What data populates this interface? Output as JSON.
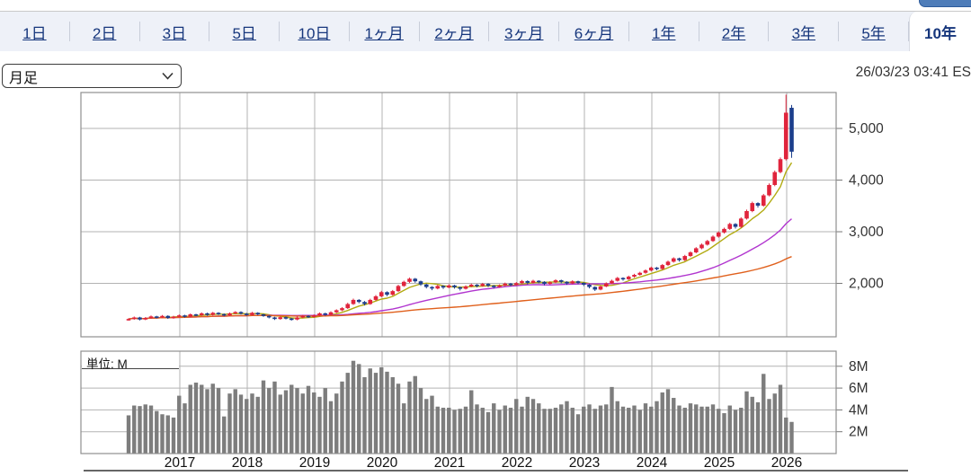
{
  "toolbar": {
    "tabs": [
      {
        "label": "1日"
      },
      {
        "label": "2日"
      },
      {
        "label": "3日"
      },
      {
        "label": "5日"
      },
      {
        "label": "10日"
      },
      {
        "label": "1ヶ月"
      },
      {
        "label": "2ヶ月"
      },
      {
        "label": "3ヶ月"
      },
      {
        "label": "6ヶ月"
      },
      {
        "label": "1年"
      },
      {
        "label": "2年"
      },
      {
        "label": "3年"
      },
      {
        "label": "5年"
      },
      {
        "label": "10年"
      }
    ],
    "selected_tab": "10年"
  },
  "controls": {
    "timeframe_select": {
      "value": "月足"
    },
    "timestamp": "26/03/23 03:41 ES"
  },
  "chart_data": {
    "type": "candlestick",
    "title": "",
    "x_axis": {
      "year_labels": [
        "2017",
        "2018",
        "2019",
        "2020",
        "2021",
        "2022",
        "2023",
        "2024",
        "2025",
        "2026"
      ]
    },
    "price_axis": {
      "tick_values": [
        5000,
        4000,
        3000,
        2000
      ],
      "tick_labels": [
        "5,000",
        "4,000",
        "3,000",
        "2,000"
      ]
    },
    "volume_axis": {
      "tick_values": [
        8,
        6,
        4,
        2
      ],
      "tick_labels": [
        "8M",
        "6M",
        "4M",
        "2M"
      ],
      "unit_label": "単位: M"
    },
    "start_month": "2016-03",
    "candles": [
      [
        1300,
        1325,
        1278,
        1310
      ],
      [
        1310,
        1358,
        1295,
        1340
      ],
      [
        1340,
        1352,
        1282,
        1300
      ],
      [
        1300,
        1348,
        1288,
        1330
      ],
      [
        1330,
        1378,
        1315,
        1360
      ],
      [
        1360,
        1372,
        1322,
        1340
      ],
      [
        1340,
        1388,
        1326,
        1370
      ],
      [
        1370,
        1382,
        1312,
        1330
      ],
      [
        1330,
        1372,
        1315,
        1355
      ],
      [
        1355,
        1398,
        1340,
        1380
      ],
      [
        1380,
        1392,
        1338,
        1355
      ],
      [
        1355,
        1418,
        1342,
        1400
      ],
      [
        1400,
        1412,
        1365,
        1385
      ],
      [
        1385,
        1438,
        1370,
        1420
      ],
      [
        1420,
        1432,
        1372,
        1390
      ],
      [
        1390,
        1448,
        1376,
        1430
      ],
      [
        1430,
        1442,
        1388,
        1405
      ],
      [
        1405,
        1418,
        1362,
        1380
      ],
      [
        1380,
        1438,
        1366,
        1420
      ],
      [
        1420,
        1462,
        1406,
        1445
      ],
      [
        1445,
        1458,
        1398,
        1415
      ],
      [
        1415,
        1428,
        1372,
        1390
      ],
      [
        1390,
        1448,
        1376,
        1430
      ],
      [
        1430,
        1442,
        1382,
        1400
      ],
      [
        1400,
        1412,
        1352,
        1370
      ],
      [
        1370,
        1382,
        1322,
        1340
      ],
      [
        1340,
        1352,
        1292,
        1310
      ],
      [
        1310,
        1362,
        1296,
        1345
      ],
      [
        1345,
        1358,
        1302,
        1320
      ],
      [
        1320,
        1332,
        1280,
        1300
      ],
      [
        1300,
        1358,
        1286,
        1340
      ],
      [
        1340,
        1388,
        1326,
        1370
      ],
      [
        1370,
        1382,
        1330,
        1350
      ],
      [
        1350,
        1398,
        1336,
        1380
      ],
      [
        1380,
        1438,
        1366,
        1420
      ],
      [
        1420,
        1432,
        1372,
        1390
      ],
      [
        1390,
        1458,
        1376,
        1440
      ],
      [
        1440,
        1498,
        1425,
        1480
      ],
      [
        1480,
        1540,
        1462,
        1520
      ],
      [
        1520,
        1625,
        1505,
        1600
      ],
      [
        1600,
        1705,
        1582,
        1680
      ],
      [
        1680,
        1695,
        1615,
        1640
      ],
      [
        1640,
        1658,
        1572,
        1600
      ],
      [
        1600,
        1702,
        1585,
        1680
      ],
      [
        1680,
        1775,
        1662,
        1750
      ],
      [
        1750,
        1855,
        1732,
        1830
      ],
      [
        1830,
        1845,
        1752,
        1780
      ],
      [
        1780,
        1872,
        1762,
        1850
      ],
      [
        1850,
        1975,
        1832,
        1950
      ],
      [
        1950,
        2052,
        1932,
        2030
      ],
      [
        2030,
        2112,
        2008,
        2090
      ],
      [
        2090,
        2105,
        2012,
        2040
      ],
      [
        2040,
        2055,
        1952,
        1980
      ],
      [
        1980,
        1995,
        1902,
        1930
      ],
      [
        1930,
        1945,
        1868,
        1900
      ],
      [
        1900,
        1972,
        1885,
        1950
      ],
      [
        1950,
        1965,
        1892,
        1920
      ],
      [
        1920,
        1982,
        1905,
        1960
      ],
      [
        1960,
        1972,
        1898,
        1925
      ],
      [
        1925,
        1938,
        1862,
        1895
      ],
      [
        1895,
        1962,
        1880,
        1940
      ],
      [
        1940,
        1995,
        1925,
        1975
      ],
      [
        1975,
        1988,
        1922,
        1950
      ],
      [
        1950,
        2010,
        1935,
        1990
      ],
      [
        1990,
        2002,
        1928,
        1955
      ],
      [
        1955,
        1968,
        1902,
        1930
      ],
      [
        1930,
        1980,
        1915,
        1960
      ],
      [
        1960,
        2015,
        1945,
        1995
      ],
      [
        1995,
        2008,
        1942,
        1970
      ],
      [
        1970,
        2025,
        1955,
        2005
      ],
      [
        2005,
        2065,
        1990,
        2045
      ],
      [
        2045,
        2058,
        1982,
        2010
      ],
      [
        2010,
        2070,
        1995,
        2050
      ],
      [
        2050,
        2062,
        2002,
        2030
      ],
      [
        2030,
        2042,
        1962,
        1990
      ],
      [
        1990,
        2040,
        1975,
        2020
      ],
      [
        2020,
        2080,
        2005,
        2060
      ],
      [
        2060,
        2072,
        2002,
        2030
      ],
      [
        2030,
        2042,
        1972,
        2000
      ],
      [
        2000,
        2060,
        1985,
        2040
      ],
      [
        2040,
        2052,
        1982,
        2010
      ],
      [
        2010,
        2022,
        1948,
        1975
      ],
      [
        1975,
        1988,
        1902,
        1930
      ],
      [
        1930,
        1942,
        1852,
        1880
      ],
      [
        1880,
        1960,
        1865,
        1940
      ],
      [
        1940,
        2020,
        1925,
        2000
      ],
      [
        2000,
        2072,
        1985,
        2050
      ],
      [
        2050,
        2125,
        2035,
        2105
      ],
      [
        2105,
        2118,
        2052,
        2080
      ],
      [
        2080,
        2150,
        2065,
        2130
      ],
      [
        2130,
        2185,
        2112,
        2165
      ],
      [
        2165,
        2225,
        2148,
        2205
      ],
      [
        2205,
        2272,
        2188,
        2250
      ],
      [
        2250,
        2325,
        2232,
        2305
      ],
      [
        2305,
        2318,
        2252,
        2280
      ],
      [
        2280,
        2375,
        2262,
        2355
      ],
      [
        2355,
        2442,
        2338,
        2420
      ],
      [
        2420,
        2505,
        2402,
        2485
      ],
      [
        2485,
        2498,
        2422,
        2450
      ],
      [
        2450,
        2552,
        2432,
        2530
      ],
      [
        2530,
        2622,
        2512,
        2600
      ],
      [
        2600,
        2702,
        2582,
        2680
      ],
      [
        2680,
        2772,
        2662,
        2750
      ],
      [
        2750,
        2842,
        2732,
        2820
      ],
      [
        2820,
        2928,
        2802,
        2905
      ],
      [
        2905,
        3008,
        2885,
        2985
      ],
      [
        2985,
        3078,
        2965,
        3055
      ],
      [
        3055,
        3175,
        3035,
        3150
      ],
      [
        3150,
        3165,
        3062,
        3095
      ],
      [
        3095,
        3280,
        3075,
        3255
      ],
      [
        3255,
        3428,
        3235,
        3400
      ],
      [
        3400,
        3582,
        3378,
        3555
      ],
      [
        3555,
        3570,
        3468,
        3505
      ],
      [
        3505,
        3732,
        3485,
        3705
      ],
      [
        3705,
        3935,
        3685,
        3905
      ],
      [
        3905,
        4185,
        3882,
        4155
      ],
      [
        4155,
        4438,
        4130,
        4405
      ],
      [
        4405,
        5655,
        4380,
        5305
      ],
      [
        5400,
        5455,
        4430,
        4550
      ]
    ],
    "volumes": [
      3.5,
      4.4,
      4.35,
      4.5,
      4.4,
      3.9,
      3.6,
      3.5,
      3.3,
      5.3,
      4.6,
      6.3,
      6.5,
      6.3,
      5.9,
      6.4,
      6.0,
      3.4,
      5.5,
      5.9,
      5.4,
      5.0,
      5.5,
      5.2,
      6.7,
      6.0,
      6.6,
      5.4,
      5.8,
      6.3,
      6.0,
      5.5,
      6.2,
      5.6,
      5.2,
      6.0,
      4.8,
      5.5,
      6.6,
      7.4,
      8.5,
      8.2,
      7.0,
      7.8,
      7.4,
      7.9,
      7.5,
      7.0,
      6.4,
      4.6,
      6.6,
      7.1,
      6.0,
      5.0,
      5.3,
      4.3,
      4.2,
      4.2,
      4.0,
      4.1,
      4.3,
      5.8,
      4.5,
      4.2,
      3.8,
      4.6,
      4.0,
      4.4,
      4.2,
      5.0,
      4.3,
      5.2,
      5.0,
      4.6,
      4.1,
      4.1,
      4.2,
      4.5,
      4.8,
      4.2,
      3.6,
      4.3,
      4.5,
      4.1,
      4.4,
      4.5,
      6.1,
      4.8,
      4.3,
      4.2,
      4.4,
      4.0,
      4.6,
      4.3,
      4.8,
      5.6,
      5.9,
      5.1,
      4.4,
      4.2,
      4.6,
      4.5,
      4.3,
      4.3,
      4.5,
      4.1,
      3.7,
      4.4,
      4.0,
      4.2,
      5.7,
      5.2,
      4.7,
      7.3,
      5.0,
      5.5,
      6.3,
      3.3,
      2.9
    ],
    "moving_averages": [
      {
        "name": "short",
        "window": 6,
        "color": "#b2ab12"
      },
      {
        "name": "mid",
        "window": 24,
        "color": "#b135cf"
      },
      {
        "name": "long",
        "window": 60,
        "color": "#e0601c"
      }
    ],
    "colors": {
      "up": "#e0243c",
      "down": "#1c3e8c",
      "volume_bar": "#7d7d7d",
      "grid": "#b3b3b3",
      "panel_border": "#8f8f8f",
      "axis_text": "#333333"
    }
  }
}
